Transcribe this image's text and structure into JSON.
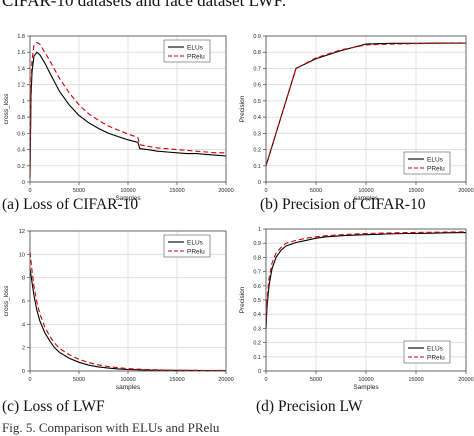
{
  "page": {
    "top_text": "CIFAR-10 datasets and face dataset LWF.",
    "bottom_text": "Fig. 5. Comparison with ELUs and PRelu"
  },
  "chart_data": [
    {
      "type": "line",
      "caption": "(a) Loss of CIFAR-10",
      "xlabel": "Samples",
      "ylabel": "cross_loss",
      "xlim": [
        0,
        20000
      ],
      "ylim": [
        0,
        1.8
      ],
      "xticks": [
        0,
        5000,
        10000,
        15000,
        20000
      ],
      "yticks": [
        0,
        0.2,
        0.4,
        0.6,
        0.8,
        1.0,
        1.2,
        1.4,
        1.6,
        1.8
      ],
      "xtick_labels": [
        "0",
        "5000",
        "10000",
        "15000",
        "20000"
      ],
      "ytick_labels": [
        "0",
        "0.2",
        "0.4",
        "0.6",
        "0.8",
        "1",
        "1.2",
        "1.4",
        "1.6",
        "1.8"
      ],
      "grid": true,
      "legend": "top-right",
      "series": [
        {
          "name": "ELUs",
          "color": "#000000",
          "dash": "solid",
          "x": [
            0,
            100,
            200,
            400,
            700,
            1000,
            1500,
            2000,
            3000,
            4000,
            5000,
            6000,
            7000,
            8000,
            9000,
            10000,
            11000,
            11200,
            12000,
            13000,
            14000,
            15000,
            16000,
            17000,
            18000,
            19000,
            20000
          ],
          "y": [
            0.05,
            1.05,
            1.35,
            1.55,
            1.6,
            1.57,
            1.47,
            1.35,
            1.12,
            0.95,
            0.82,
            0.73,
            0.66,
            0.6,
            0.56,
            0.52,
            0.49,
            0.41,
            0.4,
            0.38,
            0.37,
            0.36,
            0.35,
            0.35,
            0.34,
            0.33,
            0.32
          ]
        },
        {
          "name": "PRelu",
          "color": "#cc0000",
          "dash": "dashed",
          "x": [
            0,
            100,
            200,
            400,
            700,
            1000,
            1500,
            2000,
            3000,
            4000,
            5000,
            6000,
            7000,
            8000,
            9000,
            10000,
            11000,
            11200,
            12000,
            13000,
            14000,
            15000,
            16000,
            17000,
            18000,
            19000,
            20000
          ],
          "y": [
            0.05,
            1.2,
            1.5,
            1.68,
            1.72,
            1.7,
            1.6,
            1.5,
            1.28,
            1.1,
            0.95,
            0.84,
            0.76,
            0.69,
            0.64,
            0.59,
            0.55,
            0.46,
            0.44,
            0.42,
            0.41,
            0.4,
            0.39,
            0.38,
            0.37,
            0.36,
            0.36
          ]
        }
      ]
    },
    {
      "type": "line",
      "caption": "(b) Precision of CIFAR-10",
      "xlabel": "samples",
      "ylabel": "Precision",
      "xlim": [
        0,
        20000
      ],
      "ylim": [
        0,
        0.9
      ],
      "xticks": [
        0,
        5000,
        10000,
        15000,
        20000
      ],
      "yticks": [
        0,
        0.1,
        0.2,
        0.3,
        0.4,
        0.5,
        0.6,
        0.7,
        0.8,
        0.9
      ],
      "xtick_labels": [
        "0",
        "5000",
        "10000",
        "15000",
        "20000"
      ],
      "ytick_labels": [
        "0",
        "0.1",
        "0.2",
        "0.3",
        "0.4",
        "0.5",
        "0.6",
        "0.7",
        "0.8",
        "0.9"
      ],
      "grid": true,
      "legend": "bottom-right",
      "series": [
        {
          "name": "ELUs",
          "color": "#000000",
          "dash": "solid",
          "x": [
            0,
            3000,
            5000,
            7500,
            10000,
            12500,
            15000,
            17500,
            20000
          ],
          "y": [
            0.1,
            0.7,
            0.76,
            0.81,
            0.85,
            0.855,
            0.855,
            0.856,
            0.856
          ]
        },
        {
          "name": "PRelu",
          "color": "#cc0000",
          "dash": "dashed",
          "x": [
            0,
            3000,
            5000,
            7500,
            10000,
            12500,
            15000,
            17500,
            20000
          ],
          "y": [
            0.1,
            0.7,
            0.765,
            0.815,
            0.845,
            0.85,
            0.853,
            0.855,
            0.856
          ]
        }
      ]
    },
    {
      "type": "line",
      "caption": "(c) Loss of LWF",
      "xlabel": "samples",
      "ylabel": "cross_loss",
      "xlim": [
        0,
        20000
      ],
      "ylim": [
        0,
        12
      ],
      "xticks": [
        0,
        5000,
        10000,
        15000,
        20000
      ],
      "yticks": [
        0,
        2,
        4,
        6,
        8,
        10,
        12
      ],
      "xtick_labels": [
        "0",
        "5000",
        "10000",
        "15000",
        "20000"
      ],
      "ytick_labels": [
        "0",
        "2",
        "4",
        "6",
        "8",
        "10",
        "12"
      ],
      "grid": true,
      "legend": "top-right",
      "series": [
        {
          "name": "ELUs",
          "color": "#000000",
          "dash": "solid",
          "x": [
            0,
            200,
            400,
            700,
            1000,
            1500,
            2000,
            2500,
            3000,
            4000,
            5000,
            6000,
            7000,
            8000,
            9000,
            10000,
            12000,
            14000,
            16000,
            18000,
            20000
          ],
          "y": [
            8.8,
            7.6,
            6.5,
            5.2,
            4.3,
            3.3,
            2.6,
            2.0,
            1.6,
            1.1,
            0.75,
            0.5,
            0.35,
            0.25,
            0.18,
            0.13,
            0.08,
            0.06,
            0.05,
            0.04,
            0.03
          ]
        },
        {
          "name": "PRelu",
          "color": "#cc0000",
          "dash": "dashed",
          "x": [
            0,
            200,
            400,
            700,
            1000,
            1500,
            2000,
            2500,
            3000,
            4000,
            5000,
            6000,
            7000,
            8000,
            9000,
            10000,
            12000,
            14000,
            16000,
            18000,
            20000
          ],
          "y": [
            10.2,
            8.6,
            7.3,
            5.9,
            4.9,
            3.8,
            3.0,
            2.4,
            1.95,
            1.4,
            1.0,
            0.72,
            0.52,
            0.38,
            0.28,
            0.2,
            0.12,
            0.08,
            0.06,
            0.05,
            0.04
          ]
        }
      ]
    },
    {
      "type": "line",
      "caption": "(d) Precision LW",
      "xlabel": "Samples",
      "ylabel": "Precision",
      "xlim": [
        0,
        20000
      ],
      "ylim": [
        0,
        1
      ],
      "xticks": [
        0,
        5000,
        10000,
        15000,
        20000
      ],
      "yticks": [
        0,
        0.1,
        0.2,
        0.3,
        0.4,
        0.5,
        0.6,
        0.7,
        0.8,
        0.9,
        1
      ],
      "xtick_labels": [
        "0",
        "5000",
        "10000",
        "15000",
        "20000"
      ],
      "ytick_labels": [
        "0",
        "0.1",
        "0.2",
        "0.3",
        "0.4",
        "0.5",
        "0.6",
        "0.7",
        "0.8",
        "0.9",
        "1"
      ],
      "grid": true,
      "legend": "bottom-right",
      "series": [
        {
          "name": "ELUs",
          "color": "#000000",
          "dash": "solid",
          "x": [
            0,
            100,
            300,
            600,
            1000,
            1500,
            2000,
            3000,
            4000,
            5000,
            6000,
            8000,
            10000,
            12000,
            14000,
            16000,
            18000,
            20000
          ],
          "y": [
            0.3,
            0.45,
            0.6,
            0.72,
            0.8,
            0.85,
            0.88,
            0.905,
            0.92,
            0.935,
            0.945,
            0.955,
            0.96,
            0.965,
            0.968,
            0.97,
            0.973,
            0.975
          ]
        },
        {
          "name": "PRelu",
          "color": "#cc0000",
          "dash": "dashed",
          "x": [
            0,
            100,
            300,
            600,
            1000,
            1500,
            2000,
            3000,
            4000,
            5000,
            6000,
            8000,
            10000,
            12000,
            14000,
            16000,
            18000,
            20000
          ],
          "y": [
            0.3,
            0.5,
            0.65,
            0.76,
            0.83,
            0.87,
            0.9,
            0.92,
            0.935,
            0.945,
            0.953,
            0.962,
            0.968,
            0.972,
            0.975,
            0.977,
            0.978,
            0.98
          ]
        }
      ]
    }
  ]
}
